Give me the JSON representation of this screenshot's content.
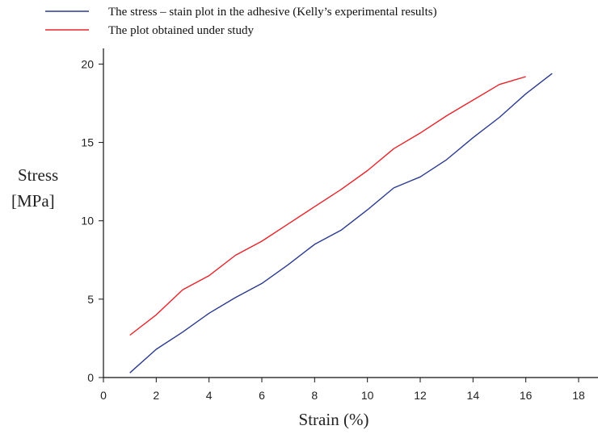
{
  "chart_data": {
    "type": "line",
    "xlabel": "Strain (%)",
    "ylabel_line1": "Stress",
    "ylabel_line2": "[MPa]",
    "xlim": [
      0,
      18
    ],
    "ylim": [
      0,
      21
    ],
    "xticks": [
      0,
      2,
      4,
      6,
      8,
      10,
      12,
      14,
      16,
      18
    ],
    "yticks": [
      0,
      5,
      10,
      15,
      20
    ],
    "grid": false,
    "legend_position": "top-left, above plot",
    "series": [
      {
        "name": "The stress – stain plot in the adhesive (Kelly’s experimental results)",
        "color": "#2b3a8f",
        "x": [
          1,
          2,
          3,
          4,
          5,
          6,
          7,
          8,
          9,
          10,
          11,
          12,
          13,
          14,
          15,
          16,
          17
        ],
        "y": [
          0.3,
          1.8,
          2.9,
          4.1,
          5.1,
          6.0,
          7.2,
          8.5,
          9.4,
          10.7,
          12.1,
          12.8,
          13.9,
          15.3,
          16.6,
          18.1,
          19.4
        ]
      },
      {
        "name": "The plot obtained under study",
        "color": "#e8232a",
        "x": [
          1,
          2,
          3,
          4,
          5,
          6,
          7,
          8,
          9,
          10,
          11,
          12,
          13,
          14,
          15,
          16
        ],
        "y": [
          2.7,
          4.0,
          5.6,
          6.5,
          7.8,
          8.7,
          9.8,
          10.9,
          12.0,
          13.2,
          14.6,
          15.6,
          16.7,
          17.7,
          18.7,
          19.2
        ]
      }
    ]
  }
}
